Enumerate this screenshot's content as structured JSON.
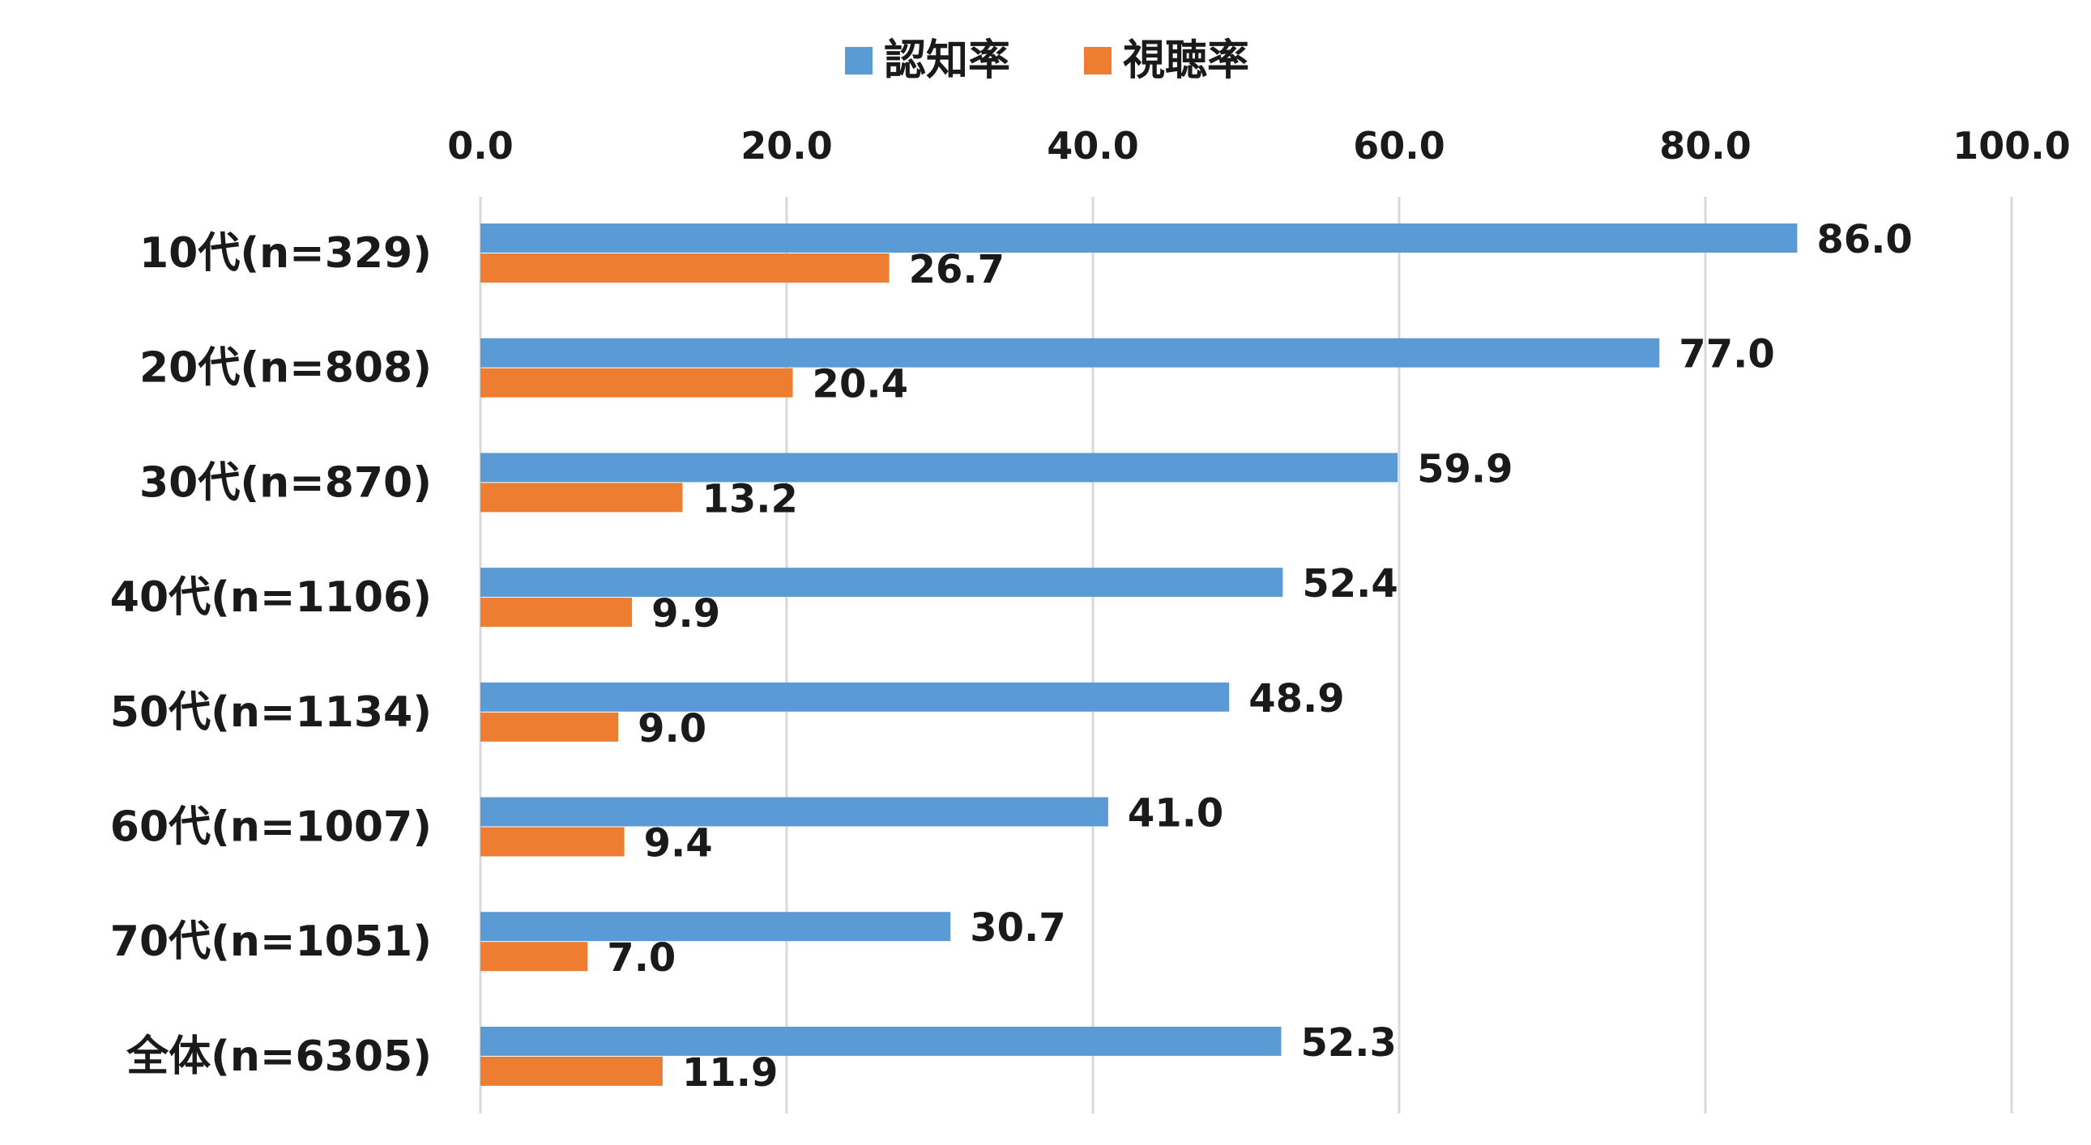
{
  "chart_data": {
    "type": "bar",
    "orientation": "horizontal",
    "title": "",
    "xlabel": "",
    "ylabel": "",
    "xlim": [
      0,
      100
    ],
    "x_ticks": [
      "0.0",
      "20.0",
      "40.0",
      "60.0",
      "80.0",
      "100.0"
    ],
    "x_axis_position": "top",
    "grid": true,
    "legend_position": "top-center",
    "categories": [
      "10代(n=329)",
      "20代(n=808)",
      "30代(n=870)",
      "40代(n=1106)",
      "50代(n=1134)",
      "60代(n=1007)",
      "70代(n=1051)",
      "全体(n=6305)"
    ],
    "series": [
      {
        "name": "認知率",
        "color": "#5B9BD5",
        "values": [
          86.0,
          77.0,
          59.9,
          52.4,
          48.9,
          41.0,
          30.7,
          52.3
        ],
        "labels": [
          "86.0",
          "77.0",
          "59.9",
          "52.4",
          "48.9",
          "41.0",
          "30.7",
          "52.3"
        ]
      },
      {
        "name": "視聴率",
        "color": "#ED7D31",
        "values": [
          26.7,
          20.4,
          13.2,
          9.9,
          9.0,
          9.4,
          7.0,
          11.9
        ],
        "labels": [
          "26.7",
          "20.4",
          "13.2",
          "9.9",
          "9.0",
          "9.4",
          "7.0",
          "11.9"
        ]
      }
    ]
  }
}
